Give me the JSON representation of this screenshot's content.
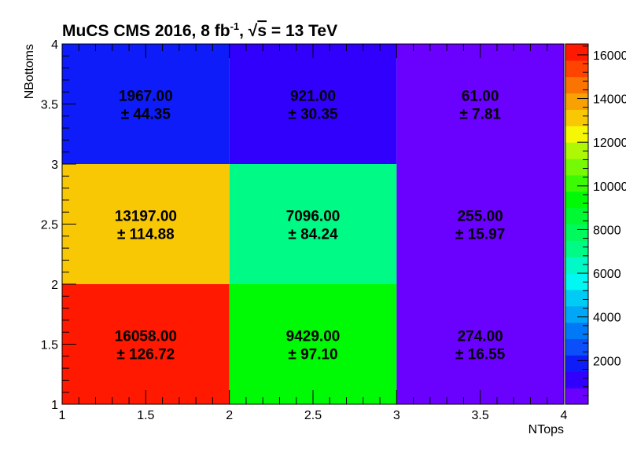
{
  "chart_data": {
    "type": "heatmap",
    "title": {
      "main": "MuCS  CMS 2016, 8 fb",
      "lumi_exponent": "-1",
      "sep": ",  ",
      "sqrt_symbol": "√",
      "energy_var": "s",
      "energy_rest": " = 13 TeV"
    },
    "xlabel": "NTops",
    "ylabel": "NBottoms",
    "xlim": [
      1,
      4
    ],
    "ylim": [
      1,
      4
    ],
    "x_bin_edges": [
      1,
      2,
      3,
      4
    ],
    "y_bin_edges": [
      1,
      2,
      3,
      4
    ],
    "x_tick_labels": [
      "1",
      "1.5",
      "2",
      "2.5",
      "3",
      "3.5",
      "4"
    ],
    "y_tick_labels": [
      "1",
      "1.5",
      "2",
      "2.5",
      "3",
      "3.5",
      "4"
    ],
    "pm_symbol": "±",
    "cells": [
      {
        "x_bin": 0,
        "y_bin": 0,
        "value": 16058.0,
        "value_label": "16058.00",
        "error_label": "126.72"
      },
      {
        "x_bin": 1,
        "y_bin": 0,
        "value": 9429.0,
        "value_label": "9429.00",
        "error_label": "97.10"
      },
      {
        "x_bin": 2,
        "y_bin": 0,
        "value": 274.0,
        "value_label": "274.00",
        "error_label": "16.55"
      },
      {
        "x_bin": 0,
        "y_bin": 1,
        "value": 13197.0,
        "value_label": "13197.00",
        "error_label": "114.88"
      },
      {
        "x_bin": 1,
        "y_bin": 1,
        "value": 7096.0,
        "value_label": "7096.00",
        "error_label": "84.24"
      },
      {
        "x_bin": 2,
        "y_bin": 1,
        "value": 255.0,
        "value_label": "255.00",
        "error_label": "15.97"
      },
      {
        "x_bin": 0,
        "y_bin": 2,
        "value": 1967.0,
        "value_label": "1967.00",
        "error_label": "44.35"
      },
      {
        "x_bin": 1,
        "y_bin": 2,
        "value": 921.0,
        "value_label": "921.00",
        "error_label": "30.35"
      },
      {
        "x_bin": 2,
        "y_bin": 2,
        "value": 61.0,
        "value_label": "61.00",
        "error_label": "7.81"
      }
    ],
    "colorbar": {
      "zlim": [
        0,
        16500
      ],
      "tick_labels": [
        "2000",
        "4000",
        "6000",
        "8000",
        "10000",
        "12000",
        "14000",
        "16000"
      ],
      "tick_values": [
        2000,
        4000,
        6000,
        8000,
        10000,
        12000,
        14000,
        16000
      ],
      "colors": [
        "#6a00fd",
        "#3100fd",
        "#0d1cf8",
        "#0a4ffa",
        "#0079f7",
        "#00a7f7",
        "#00cbf5",
        "#00f7f2",
        "#00f9c6",
        "#00fa86",
        "#00f95c",
        "#00f932",
        "#00fa05",
        "#3cfa04",
        "#76f904",
        "#aef805",
        "#f6f705",
        "#f8c805",
        "#f8a104",
        "#fa7402",
        "#ff4400",
        "#ff1900"
      ]
    },
    "grid": false,
    "legend": "none"
  }
}
